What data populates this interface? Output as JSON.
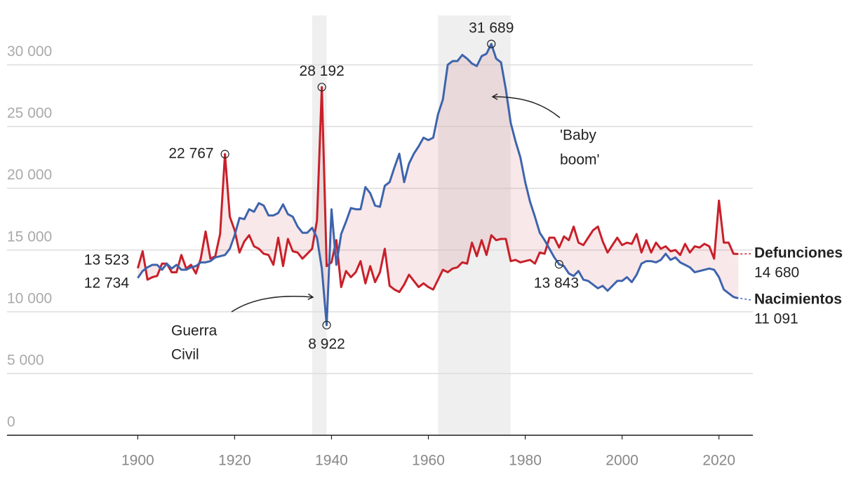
{
  "chart_data": {
    "type": "line",
    "x": [
      1900,
      1901,
      1902,
      1903,
      1904,
      1905,
      1906,
      1907,
      1908,
      1909,
      1910,
      1911,
      1912,
      1913,
      1914,
      1915,
      1916,
      1917,
      1918,
      1919,
      1920,
      1921,
      1922,
      1923,
      1924,
      1925,
      1926,
      1927,
      1928,
      1929,
      1930,
      1931,
      1932,
      1933,
      1934,
      1935,
      1936,
      1937,
      1938,
      1939,
      1940,
      1941,
      1942,
      1943,
      1944,
      1945,
      1946,
      1947,
      1948,
      1949,
      1950,
      1951,
      1952,
      1953,
      1954,
      1955,
      1956,
      1957,
      1958,
      1959,
      1960,
      1961,
      1962,
      1963,
      1964,
      1965,
      1966,
      1967,
      1968,
      1969,
      1970,
      1971,
      1972,
      1973,
      1974,
      1975,
      1976,
      1977,
      1978,
      1979,
      1980,
      1981,
      1982,
      1983,
      1984,
      1985,
      1986,
      1987,
      1988,
      1989,
      1990,
      1991,
      1992,
      1993,
      1994,
      1995,
      1996,
      1997,
      1998,
      1999,
      2000,
      2001,
      2002,
      2003,
      2004,
      2005,
      2006,
      2007,
      2008,
      2009,
      2010,
      2011,
      2012,
      2013,
      2014,
      2015,
      2016,
      2017,
      2018,
      2019,
      2020,
      2021,
      2022,
      2023,
      2024
    ],
    "series": [
      {
        "name": "Defunciones",
        "color": "#c8202a",
        "start_label": "13 523",
        "end_label": "14 680",
        "values": [
          13523,
          14900,
          12600,
          12800,
          12900,
          13900,
          13900,
          13200,
          13200,
          14600,
          13500,
          13800,
          13100,
          14300,
          16500,
          14300,
          14500,
          16300,
          22767,
          17700,
          16600,
          14800,
          15700,
          16200,
          15300,
          15100,
          14700,
          14600,
          13800,
          16000,
          13700,
          15900,
          14900,
          14800,
          14300,
          14700,
          15100,
          17400,
          28192,
          13700,
          14000,
          15800,
          12000,
          13300,
          12800,
          13200,
          14100,
          12300,
          13700,
          12400,
          13200,
          15100,
          12100,
          11800,
          11600,
          12200,
          13000,
          12500,
          12000,
          12300,
          12000,
          11800,
          12600,
          13400,
          13200,
          13500,
          13600,
          14000,
          13900,
          15600,
          14500,
          15800,
          14600,
          16200,
          15800,
          15900,
          15900,
          14100,
          14200,
          14000,
          14100,
          14200,
          13900,
          14800,
          14700,
          16000,
          16000,
          15200,
          16100,
          15800,
          16900,
          15600,
          15400,
          16000,
          16600,
          16900,
          15700,
          14800,
          15400,
          16000,
          15400,
          15600,
          15500,
          16300,
          14800,
          15800,
          14800,
          15600,
          15100,
          15300,
          14900,
          15000,
          14600,
          15500,
          14800,
          15300,
          15200,
          15500,
          15300,
          14300,
          19000,
          15600,
          15600,
          14700,
          14680
        ]
      },
      {
        "name": "Nacimientos",
        "color": "#3d64ad",
        "start_label": "12 734",
        "end_label": "11 091",
        "values": [
          12734,
          13300,
          13600,
          13800,
          13800,
          13400,
          13900,
          13500,
          13800,
          13400,
          13400,
          13600,
          13700,
          14000,
          14000,
          14100,
          14400,
          14500,
          14600,
          15100,
          16200,
          17600,
          17500,
          18300,
          18100,
          18800,
          18600,
          17800,
          17800,
          18000,
          18700,
          17900,
          17700,
          16900,
          16400,
          16400,
          16800,
          16000,
          13500,
          8922,
          18300,
          13800,
          16300,
          17300,
          18400,
          18300,
          18300,
          20100,
          19600,
          18600,
          18500,
          20200,
          20500,
          21700,
          22800,
          20500,
          22000,
          22800,
          23400,
          24100,
          23900,
          24100,
          26000,
          27200,
          30000,
          30300,
          30300,
          30800,
          30500,
          30100,
          29900,
          30700,
          30900,
          31689,
          30500,
          30200,
          28000,
          25300,
          23800,
          22500,
          20500,
          18900,
          17700,
          16400,
          15800,
          15100,
          14400,
          13843,
          13700,
          13100,
          12900,
          13300,
          12600,
          12500,
          12200,
          11900,
          12100,
          11700,
          12100,
          12500,
          12500,
          12800,
          12400,
          13000,
          13900,
          14100,
          14100,
          14000,
          14200,
          14700,
          14200,
          14400,
          14000,
          13800,
          13600,
          13200,
          13300,
          13400,
          13500,
          13400,
          12800,
          11800,
          11500,
          11200,
          11091
        ]
      }
    ],
    "xlim": [
      1873,
      2027
    ],
    "ylim": [
      0,
      34000
    ],
    "xticks": [
      1900,
      1920,
      1940,
      1960,
      1980,
      2000,
      2020
    ],
    "yticks": [
      0,
      {
        "value": 5000,
        "label": "5 000"
      },
      {
        "value": 10000,
        "label": "10 000"
      },
      {
        "value": 15000,
        "label": "15 000"
      },
      {
        "value": 20000,
        "label": "20 000"
      },
      {
        "value": 25000,
        "label": "25 000"
      },
      {
        "value": 30000,
        "label": "30 000"
      }
    ],
    "grid": true,
    "shaded_ranges": [
      [
        1936,
        1939
      ],
      [
        1962,
        1977
      ]
    ],
    "annotations": [
      {
        "x": 1973,
        "y": 31689,
        "label": "31 689"
      },
      {
        "x": 1938,
        "y": 28192,
        "label": "28 192"
      },
      {
        "x": 1918,
        "y": 22767,
        "label": "22 767"
      },
      {
        "x": 1939,
        "y": 8922,
        "label": "8 922"
      },
      {
        "x": 1987,
        "y": 13843,
        "label": "13 843"
      }
    ],
    "notes": [
      {
        "lines": [
          "'Baby",
          "boom'"
        ]
      },
      {
        "lines": [
          "Guerra",
          "Civil"
        ]
      }
    ]
  }
}
